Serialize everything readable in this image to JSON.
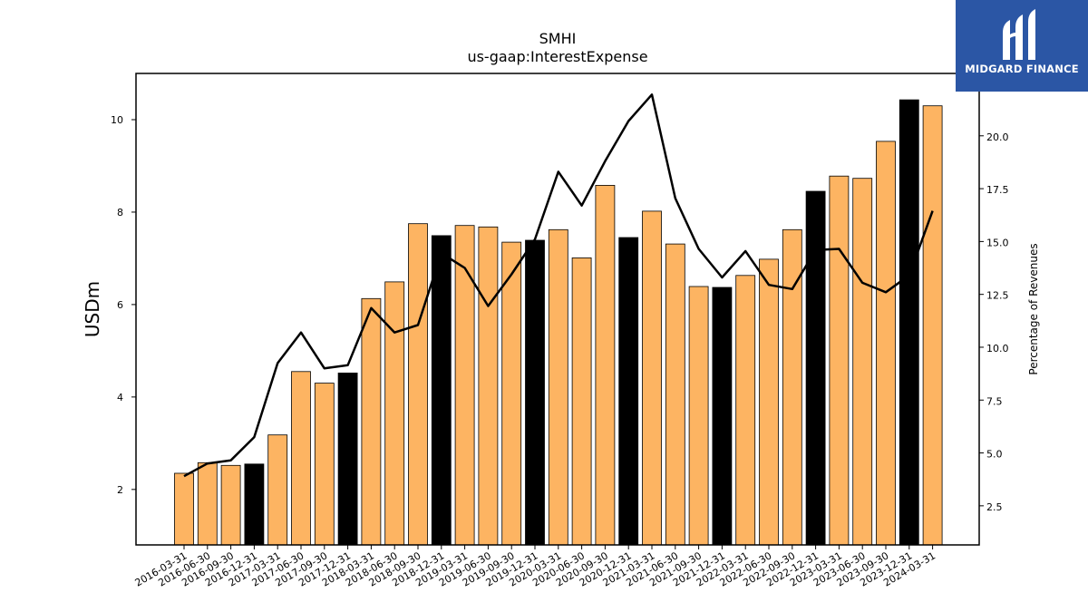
{
  "chart_data": {
    "type": "bar",
    "title": "SMHI",
    "subtitle": "us-gaap:InterestExpense",
    "ylabel": "USDm",
    "y2label": "Percentage of Revenues",
    "ylim": [
      0.8,
      11.0
    ],
    "y2lim": [
      0.65,
      22.95
    ],
    "yticks": [
      2,
      4,
      6,
      8,
      10
    ],
    "y2ticks": [
      2.5,
      5.0,
      7.5,
      10.0,
      12.5,
      15.0,
      17.5,
      20.0
    ],
    "categories": [
      "2016-03-31",
      "2016-06-30",
      "2016-09-30",
      "2016-12-31",
      "2017-03-31",
      "2017-06-30",
      "2017-09-30",
      "2017-12-31",
      "2018-03-31",
      "2018-06-30",
      "2018-09-30",
      "2018-12-31",
      "2019-03-31",
      "2019-06-30",
      "2019-09-30",
      "2019-12-31",
      "2020-03-31",
      "2020-06-30",
      "2020-09-30",
      "2020-12-31",
      "2021-03-31",
      "2021-06-30",
      "2021-09-30",
      "2021-12-31",
      "2022-03-31",
      "2022-06-30",
      "2022-09-30",
      "2022-12-31",
      "2023-03-31",
      "2023-06-30",
      "2023-09-30",
      "2023-12-31",
      "2024-03-31"
    ],
    "series": [
      {
        "type": "bar",
        "axis": "left",
        "values": [
          2.35,
          2.58,
          2.52,
          2.55,
          3.18,
          4.55,
          4.3,
          4.52,
          6.13,
          6.49,
          7.75,
          7.49,
          7.71,
          7.68,
          7.35,
          7.39,
          7.62,
          7.01,
          8.58,
          7.45,
          8.02,
          7.31,
          6.39,
          6.37,
          6.63,
          6.98,
          7.62,
          8.45,
          8.78,
          8.73,
          9.53,
          10.43,
          10.3
        ],
        "highlight": [
          false,
          false,
          false,
          true,
          false,
          false,
          false,
          true,
          false,
          false,
          false,
          true,
          false,
          false,
          false,
          true,
          false,
          false,
          false,
          true,
          false,
          false,
          false,
          true,
          false,
          false,
          false,
          true,
          false,
          false,
          false,
          true,
          false
        ]
      },
      {
        "type": "line",
        "axis": "right",
        "values": [
          3.9,
          4.5,
          4.65,
          5.75,
          9.25,
          10.7,
          9.0,
          9.15,
          11.85,
          10.7,
          11.05,
          14.45,
          13.75,
          11.95,
          13.45,
          15.1,
          18.3,
          16.7,
          18.8,
          20.7,
          21.95,
          17.05,
          14.65,
          13.3,
          14.55,
          12.95,
          12.75,
          14.6,
          14.65,
          13.05,
          12.6,
          13.4,
          16.45
        ]
      }
    ],
    "colors": {
      "bar": "#fdb462",
      "bar_highlight": "#000000",
      "line": "#000000",
      "logo_bg": "#2b56a5"
    }
  },
  "logo": {
    "text": "MIDGARD FINANCE",
    "icon": "midgard-logo-icon"
  }
}
